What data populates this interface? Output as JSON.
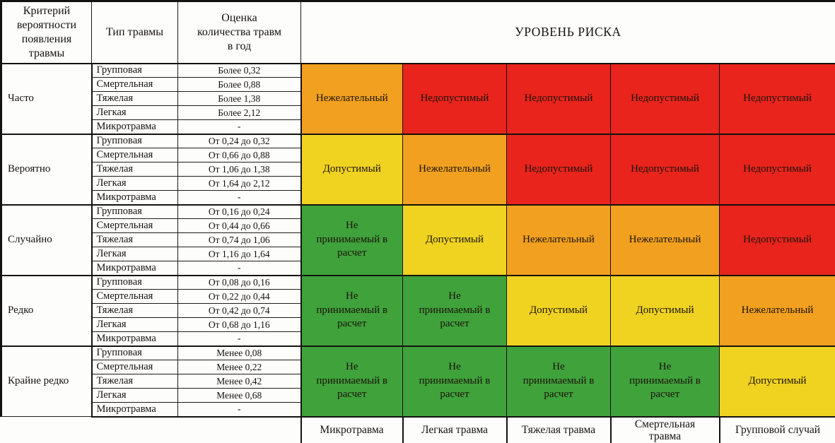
{
  "header": {
    "criterion": "Критерий\nвероятности\nпоявления\nтравмы",
    "injury_type": "Тип травмы",
    "estimate": "Оценка\nколичества травм\nв год",
    "risk_level": "УРОВЕНЬ РИСКА"
  },
  "risk_colors": {
    "red": "#E8241C",
    "orange": "#F2A01F",
    "yellow": "#F0D321",
    "green": "#3FA23B"
  },
  "groups": [
    {
      "criterion": "Часто",
      "rows": [
        {
          "type": "Групповая",
          "estimate": "Более 0,32"
        },
        {
          "type": "Смертельная",
          "estimate": "Более 0,88"
        },
        {
          "type": "Тяжелая",
          "estimate": "Более 1,38"
        },
        {
          "type": "Легкая",
          "estimate": "Более 2,12"
        },
        {
          "type": "Микротравма",
          "estimate": "-"
        }
      ],
      "risks": [
        {
          "label": "Нежелательный",
          "level": "orange"
        },
        {
          "label": "Недопустимый",
          "level": "red"
        },
        {
          "label": "Недопустимый",
          "level": "red"
        },
        {
          "label": "Недопустимый",
          "level": "red"
        },
        {
          "label": "Недопустимый",
          "level": "red"
        }
      ]
    },
    {
      "criterion": "Вероятно",
      "rows": [
        {
          "type": "Групповая",
          "estimate": "От 0,24 до 0,32"
        },
        {
          "type": "Смертельная",
          "estimate": "От 0,66 до 0,88"
        },
        {
          "type": "Тяжелая",
          "estimate": "От 1,06 до 1,38"
        },
        {
          "type": "Легкая",
          "estimate": "От 1,64 до 2,12"
        },
        {
          "type": "Микротравма",
          "estimate": "-"
        }
      ],
      "risks": [
        {
          "label": "Допустимый",
          "level": "yellow"
        },
        {
          "label": "Нежелательный",
          "level": "orange"
        },
        {
          "label": "Недопустимый",
          "level": "red"
        },
        {
          "label": "Недопустимый",
          "level": "red"
        },
        {
          "label": "Недопустимый",
          "level": "red"
        }
      ]
    },
    {
      "criterion": "Случайно",
      "rows": [
        {
          "type": "Групповая",
          "estimate": "От 0,16 до 0,24"
        },
        {
          "type": "Смертельная",
          "estimate": "От 0,44 до 0,66"
        },
        {
          "type": "Тяжелая",
          "estimate": "От 0,74 до 1,06"
        },
        {
          "type": "Легкая",
          "estimate": "От 1,16 до 1,64"
        },
        {
          "type": "Микротравма",
          "estimate": "-"
        }
      ],
      "risks": [
        {
          "label": "Не\nпринимаемый в\nрасчет",
          "level": "green"
        },
        {
          "label": "Допустимый",
          "level": "yellow"
        },
        {
          "label": "Нежелательный",
          "level": "orange"
        },
        {
          "label": "Нежелательный",
          "level": "orange"
        },
        {
          "label": "Недопустимый",
          "level": "red"
        }
      ]
    },
    {
      "criterion": "Редко",
      "rows": [
        {
          "type": "Групповая",
          "estimate": "От 0,08 до 0,16"
        },
        {
          "type": "Смертельная",
          "estimate": "От 0,22 до 0,44"
        },
        {
          "type": "Тяжелая",
          "estimate": "От 0,42 до 0,74"
        },
        {
          "type": "Легкая",
          "estimate": "От 0,68 до 1,16"
        },
        {
          "type": "Микротравма",
          "estimate": "-"
        }
      ],
      "risks": [
        {
          "label": "Не\nпринимаемый в\nрасчет",
          "level": "green"
        },
        {
          "label": "Не\nпринимаемый в\nрасчет",
          "level": "green"
        },
        {
          "label": "Допустимый",
          "level": "yellow"
        },
        {
          "label": "Допустимый",
          "level": "yellow"
        },
        {
          "label": "Нежелательный",
          "level": "orange"
        }
      ]
    },
    {
      "criterion": "Крайне редко",
      "rows": [
        {
          "type": "Групповая",
          "estimate": "Менее 0,08"
        },
        {
          "type": "Смертельная",
          "estimate": "Менее 0,22"
        },
        {
          "type": "Тяжелая",
          "estimate": "Менее 0,42"
        },
        {
          "type": "Легкая",
          "estimate": "Менее 0,68"
        },
        {
          "type": "Микротравма",
          "estimate": "-"
        }
      ],
      "risks": [
        {
          "label": "Не\nпринимаемый в\nрасчет",
          "level": "green"
        },
        {
          "label": "Не\nпринимаемый в\nрасчет",
          "level": "green"
        },
        {
          "label": "Не\nпринимаемый в\nрасчет",
          "level": "green"
        },
        {
          "label": "Не\nпринимаемый в\nрасчет",
          "level": "green"
        },
        {
          "label": "Допустимый",
          "level": "yellow"
        }
      ]
    }
  ],
  "footer_labels": [
    "Микротравма",
    "Легкая травма",
    "Тяжелая травма",
    "Смертельная\nтравма",
    "Групповой случай"
  ]
}
